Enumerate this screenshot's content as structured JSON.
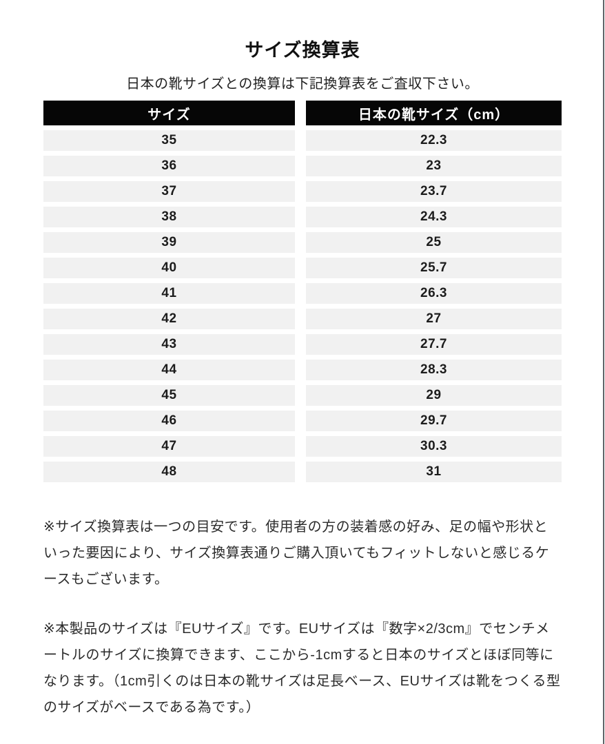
{
  "page": {
    "title": "サイズ換算表",
    "subtitle": "日本の靴サイズとの換算は下記換算表をご査収下さい。"
  },
  "table": {
    "columns": [
      "サイズ",
      "日本の靴サイズ（cm）"
    ],
    "rows": [
      {
        "eu": "35",
        "jp": "22.3"
      },
      {
        "eu": "36",
        "jp": "23"
      },
      {
        "eu": "37",
        "jp": "23.7"
      },
      {
        "eu": "38",
        "jp": "24.3"
      },
      {
        "eu": "39",
        "jp": "25"
      },
      {
        "eu": "40",
        "jp": "25.7"
      },
      {
        "eu": "41",
        "jp": "26.3"
      },
      {
        "eu": "42",
        "jp": "27"
      },
      {
        "eu": "43",
        "jp": "27.7"
      },
      {
        "eu": "44",
        "jp": "28.3"
      },
      {
        "eu": "45",
        "jp": "29"
      },
      {
        "eu": "46",
        "jp": "29.7"
      },
      {
        "eu": "47",
        "jp": "30.3"
      },
      {
        "eu": "48",
        "jp": "31"
      }
    ]
  },
  "notes": [
    "※サイズ換算表は一つの目安です。使用者の方の装着感の好み、足の幅や形状といった要因により、サイズ換算表通りご購入頂いてもフィットしないと感じるケースもございます。",
    "※本製品のサイズは『EUサイズ』です。EUサイズは『数字×2/3cm』でセンチメートルのサイズに換算できます、ここから-1cmすると日本のサイズとほぼ同等になります。（1cm引くのは日本の靴サイズは足長ベース、EUサイズは靴をつくる型のサイズがベースである為です。）"
  ],
  "colors": {
    "header_bg": "#060606",
    "header_text": "#ffffff",
    "row_bg": "#f1f1f1",
    "body_text": "#2b2b2b",
    "right_border": "#5f6368"
  }
}
